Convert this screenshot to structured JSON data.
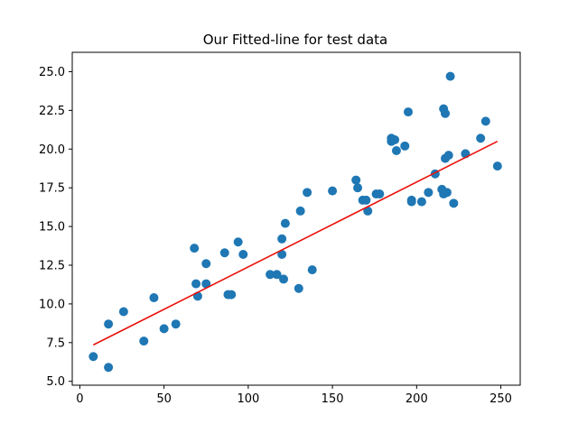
{
  "chart_data": {
    "type": "scatter",
    "title": "Our Fitted-line for test data",
    "xlabel": "",
    "ylabel": "",
    "xlim": [
      -4.5,
      261.5
    ],
    "ylim": [
      4.75,
      26.25
    ],
    "xticks": [
      0,
      50,
      100,
      150,
      200,
      250
    ],
    "yticks": [
      5.0,
      7.5,
      10.0,
      12.5,
      15.0,
      17.5,
      20.0,
      22.5,
      25.0
    ],
    "grid": false,
    "series": [
      {
        "kind": "scatter",
        "color": "#1f77b4",
        "points": [
          [
            8,
            6.6
          ],
          [
            17,
            5.9
          ],
          [
            17,
            8.7
          ],
          [
            26,
            9.5
          ],
          [
            38,
            7.6
          ],
          [
            44,
            10.4
          ],
          [
            50,
            8.4
          ],
          [
            57,
            8.7
          ],
          [
            68,
            13.6
          ],
          [
            69,
            11.3
          ],
          [
            70,
            10.5
          ],
          [
            75,
            11.3
          ],
          [
            75,
            12.6
          ],
          [
            86,
            13.3
          ],
          [
            88,
            10.6
          ],
          [
            90,
            10.6
          ],
          [
            94,
            14.0
          ],
          [
            97,
            13.2
          ],
          [
            113,
            11.9
          ],
          [
            117,
            11.9
          ],
          [
            120,
            14.2
          ],
          [
            120,
            13.2
          ],
          [
            121,
            11.6
          ],
          [
            122,
            15.2
          ],
          [
            130,
            11.0
          ],
          [
            131,
            16.0
          ],
          [
            135,
            17.2
          ],
          [
            138,
            12.2
          ],
          [
            150,
            17.3
          ],
          [
            164,
            18.0
          ],
          [
            165,
            17.5
          ],
          [
            168,
            16.7
          ],
          [
            170,
            16.7
          ],
          [
            171,
            16.0
          ],
          [
            176,
            17.1
          ],
          [
            178,
            17.1
          ],
          [
            185,
            20.7
          ],
          [
            185,
            20.5
          ],
          [
            187,
            20.6
          ],
          [
            188,
            19.9
          ],
          [
            193,
            20.2
          ],
          [
            195,
            22.4
          ],
          [
            197,
            16.7
          ],
          [
            197,
            16.6
          ],
          [
            203,
            16.6
          ],
          [
            207,
            17.2
          ],
          [
            211,
            18.4
          ],
          [
            215,
            17.4
          ],
          [
            216,
            17.1
          ],
          [
            216,
            22.6
          ],
          [
            217,
            22.3
          ],
          [
            217,
            19.4
          ],
          [
            218,
            17.2
          ],
          [
            219,
            19.6
          ],
          [
            220,
            24.7
          ],
          [
            222,
            16.5
          ],
          [
            229,
            19.7
          ],
          [
            238,
            20.7
          ],
          [
            241,
            21.8
          ],
          [
            248,
            18.9
          ]
        ]
      },
      {
        "kind": "line",
        "color": "#e8120c",
        "points": [
          [
            8,
            7.35
          ],
          [
            248,
            20.5
          ]
        ]
      }
    ]
  }
}
